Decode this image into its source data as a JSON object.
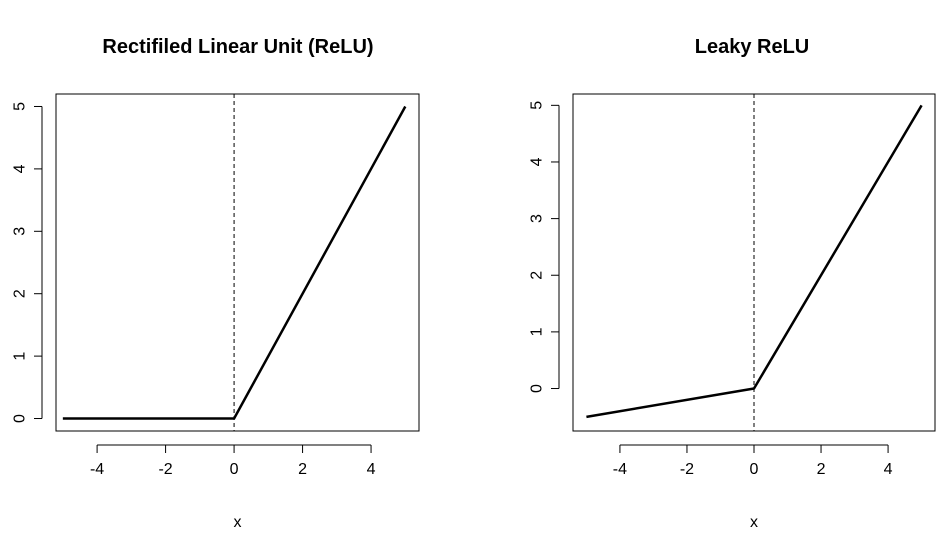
{
  "chart_data": [
    {
      "type": "line",
      "title": "Rectifiled Linear Unit (ReLU)",
      "xlabel": "x",
      "ylabel": "",
      "xlim": [
        -5.2,
        5.4
      ],
      "ylim": [
        -0.2,
        5.2
      ],
      "x_ticks": [
        -4,
        -2,
        0,
        2,
        4
      ],
      "x_tick_labels": [
        "-4",
        "-2",
        "0",
        "2",
        "4"
      ],
      "y_ticks": [
        0,
        1,
        2,
        3,
        4,
        5
      ],
      "y_tick_labels": [
        "0",
        "1",
        "2",
        "3",
        "4",
        "5"
      ],
      "grid": false,
      "vline": {
        "x": 0,
        "style": "dashed"
      },
      "series": [
        {
          "x": [
            -5,
            0,
            5
          ],
          "y": [
            0,
            0,
            5
          ]
        }
      ]
    },
    {
      "type": "line",
      "title": "Leaky ReLU",
      "xlabel": "x",
      "ylabel": "",
      "xlim": [
        -5.4,
        5.4
      ],
      "ylim": [
        -0.75,
        5.2
      ],
      "x_ticks": [
        -4,
        -2,
        0,
        2,
        4
      ],
      "x_tick_labels": [
        "-4",
        "-2",
        "0",
        "2",
        "4"
      ],
      "y_ticks": [
        0,
        1,
        2,
        3,
        4,
        5
      ],
      "y_tick_labels": [
        "0",
        "1",
        "2",
        "3",
        "4",
        "5"
      ],
      "grid": false,
      "vline": {
        "x": 0,
        "style": "dashed"
      },
      "series": [
        {
          "x": [
            -5,
            0,
            5
          ],
          "y": [
            -0.5,
            0,
            5
          ]
        }
      ]
    }
  ],
  "colors": {
    "line": "#000000",
    "axis": "#000000",
    "background": "#ffffff"
  }
}
